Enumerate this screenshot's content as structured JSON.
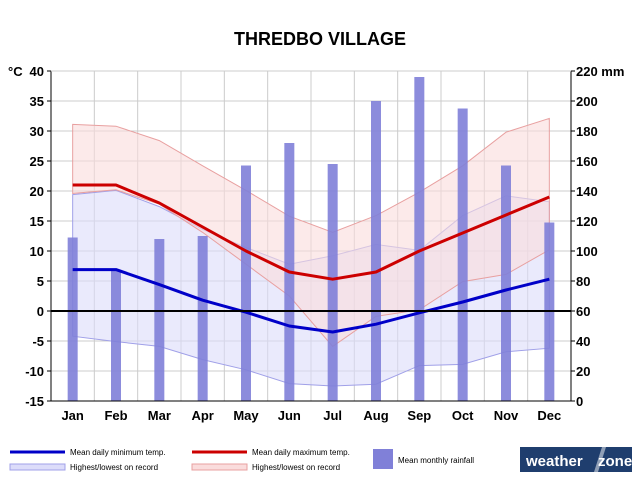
{
  "chart_data": {
    "type": "bar+line",
    "title": "THREDBO VILLAGE",
    "categories": [
      "Jan",
      "Feb",
      "Mar",
      "Apr",
      "May",
      "Jun",
      "Jul",
      "Aug",
      "Sep",
      "Oct",
      "Nov",
      "Dec"
    ],
    "y_left": {
      "unit": "°C",
      "ylim": [
        -15,
        40
      ],
      "ticks": [
        40,
        35,
        30,
        25,
        20,
        15,
        10,
        5,
        0,
        -5,
        -10,
        -15
      ]
    },
    "y_right": {
      "unit": "mm",
      "ylim": [
        0,
        220
      ],
      "ticks": [
        220,
        200,
        180,
        160,
        140,
        120,
        100,
        80,
        60,
        40,
        20,
        0
      ]
    },
    "grid": true,
    "series": [
      {
        "name": "Mean monthly rainfall",
        "kind": "bar",
        "axis": "right",
        "color": "#8080d8",
        "values": [
          109,
          87,
          108,
          110,
          157,
          172,
          158,
          200,
          216,
          195,
          157,
          119
        ]
      },
      {
        "name": "Mean daily minimum temp.",
        "kind": "line",
        "axis": "left",
        "color": "#0000c8",
        "values": [
          6.9,
          6.9,
          4.4,
          1.8,
          -0.2,
          -2.5,
          -3.5,
          -2.2,
          -0.3,
          1.5,
          3.5,
          5.3
        ]
      },
      {
        "name": "Mean daily maximum temp.",
        "kind": "line",
        "axis": "left",
        "color": "#cc0000",
        "values": [
          21,
          21,
          18,
          14,
          10,
          6.5,
          5.3,
          6.5,
          10,
          13,
          16,
          19
        ]
      }
    ],
    "record_bands": [
      {
        "name": "Highest/lowest on record",
        "of": "Mean daily minimum temp.",
        "fill": "#dcdcfa",
        "stroke": "#a0a0e8",
        "high": [
          19.4,
          20.1,
          17.4,
          13.6,
          10.6,
          7.8,
          9.2,
          11.1,
          10.1,
          15.9,
          19.2,
          18.2
        ],
        "low": [
          -4.2,
          -5.1,
          -5.9,
          -8.1,
          -9.8,
          -12.1,
          -12.5,
          -12.2,
          -9.1,
          -8.9,
          -6.8,
          -6.2
        ]
      },
      {
        "name": "Highest/lowest on record",
        "of": "Mean daily maximum temp.",
        "fill": "#fadcdc",
        "stroke": "#e8a0a0",
        "high": [
          31.1,
          30.8,
          28.4,
          24.2,
          20.1,
          15.8,
          13.1,
          15.9,
          19.8,
          24.2,
          29.8,
          32.1
        ],
        "low": [
          19.6,
          20.2,
          17.8,
          13.1,
          7.8,
          2.5,
          -5.9,
          -0.9,
          0.2,
          4.9,
          6.1,
          10.2
        ]
      }
    ],
    "legend": {
      "position": "bottom",
      "items": [
        "Mean daily minimum temp.",
        "Mean daily maximum temp.",
        "Mean monthly rainfall",
        "Highest/lowest on record",
        "Highest/lowest on record"
      ]
    },
    "logo": {
      "text_a": "weather",
      "text_b": "zone"
    }
  }
}
